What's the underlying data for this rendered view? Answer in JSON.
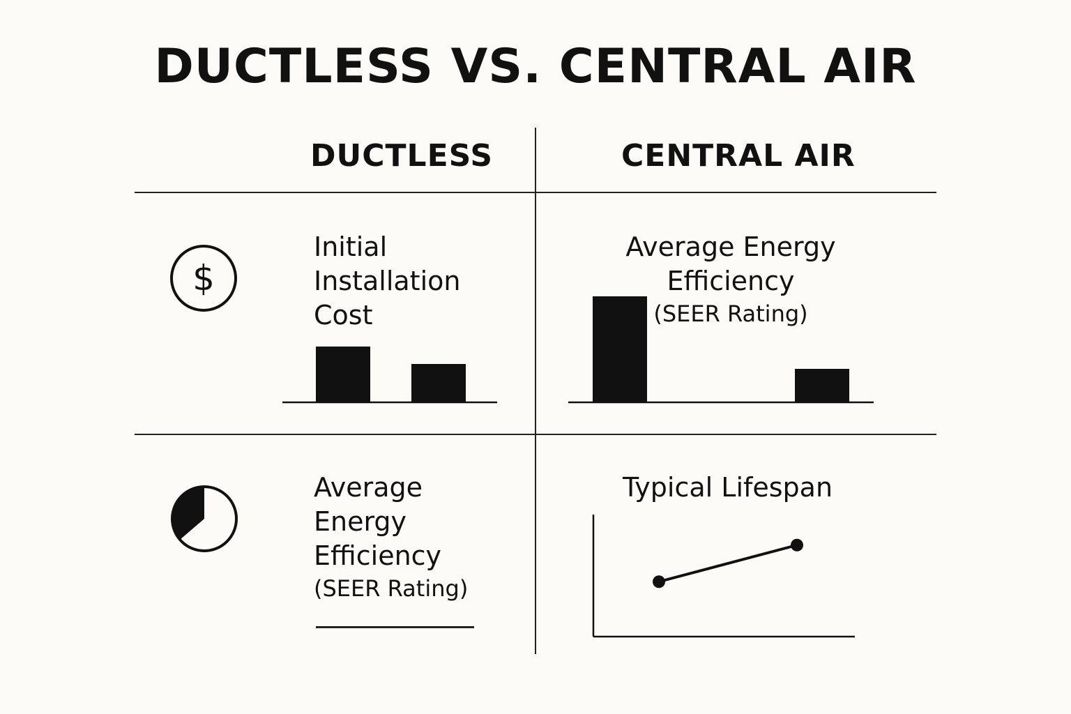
{
  "title": "DUCTLESS VS. CENTRAL AIR",
  "columns": {
    "ductless": "DUCTLESS",
    "central_air": "CENTRAL AIR"
  },
  "rows": [
    {
      "icon": "dollar-circle-icon",
      "ductless_label": [
        "Initial",
        "Installation",
        "Cost"
      ],
      "central_label": [
        "Average Energy",
        "Efficiency"
      ],
      "central_sublabel": "(SEER Rating)"
    },
    {
      "icon": "pie-chart-icon",
      "ductless_label": [
        "Average",
        "Energy",
        "Efficiency"
      ],
      "ductless_sublabel": "(SEER Rating)",
      "central_label": [
        "Typical Lifespan"
      ]
    }
  ],
  "chart_data": [
    {
      "type": "bar",
      "categories": [
        "",
        ""
      ],
      "values": [
        80,
        55
      ],
      "ylim": [
        0,
        100
      ]
    },
    {
      "type": "bar",
      "categories": [
        "",
        ""
      ],
      "values": [
        152,
        48
      ],
      "ylim": [
        0,
        160
      ]
    },
    {
      "type": "line",
      "x": [
        0,
        1
      ],
      "y": [
        45,
        75
      ],
      "ylim": [
        0,
        100
      ]
    }
  ],
  "colors": {
    "background": "#fcfbf7",
    "ink": "#111111"
  }
}
